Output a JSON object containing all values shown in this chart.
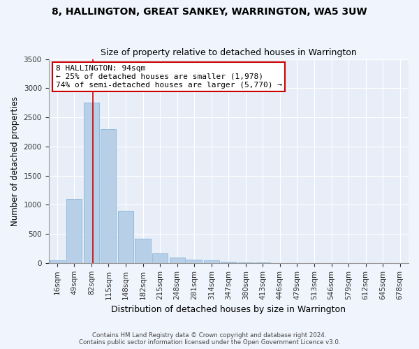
{
  "title1": "8, HALLINGTON, GREAT SANKEY, WARRINGTON, WA5 3UW",
  "title2": "Size of property relative to detached houses in Warrington",
  "xlabel": "Distribution of detached houses by size in Warrington",
  "ylabel": "Number of detached properties",
  "bar_color": "#b8cfe8",
  "bar_edge_color": "#7aadd4",
  "categories": [
    "16sqm",
    "49sqm",
    "82sqm",
    "115sqm",
    "148sqm",
    "182sqm",
    "215sqm",
    "248sqm",
    "281sqm",
    "314sqm",
    "347sqm",
    "380sqm",
    "413sqm",
    "446sqm",
    "479sqm",
    "513sqm",
    "546sqm",
    "579sqm",
    "612sqm",
    "645sqm",
    "678sqm"
  ],
  "values": [
    50,
    1100,
    2750,
    2300,
    900,
    420,
    160,
    90,
    60,
    40,
    20,
    10,
    5,
    2,
    1,
    0,
    0,
    0,
    0,
    0,
    0
  ],
  "vline_index": 2.1,
  "annotation_text": "8 HALLINGTON: 94sqm\n← 25% of detached houses are smaller (1,978)\n74% of semi-detached houses are larger (5,770) →",
  "annotation_box_facecolor": "#ffffff",
  "annotation_box_edgecolor": "#cc0000",
  "ylim": [
    0,
    3500
  ],
  "yticks": [
    0,
    500,
    1000,
    1500,
    2000,
    2500,
    3000,
    3500
  ],
  "fig_facecolor": "#f0f4fc",
  "ax_facecolor": "#e8eef8",
  "grid_color": "#ffffff",
  "vline_color": "#cc0000",
  "footer1": "Contains HM Land Registry data © Crown copyright and database right 2024.",
  "footer2": "Contains public sector information licensed under the Open Government Licence v3.0."
}
